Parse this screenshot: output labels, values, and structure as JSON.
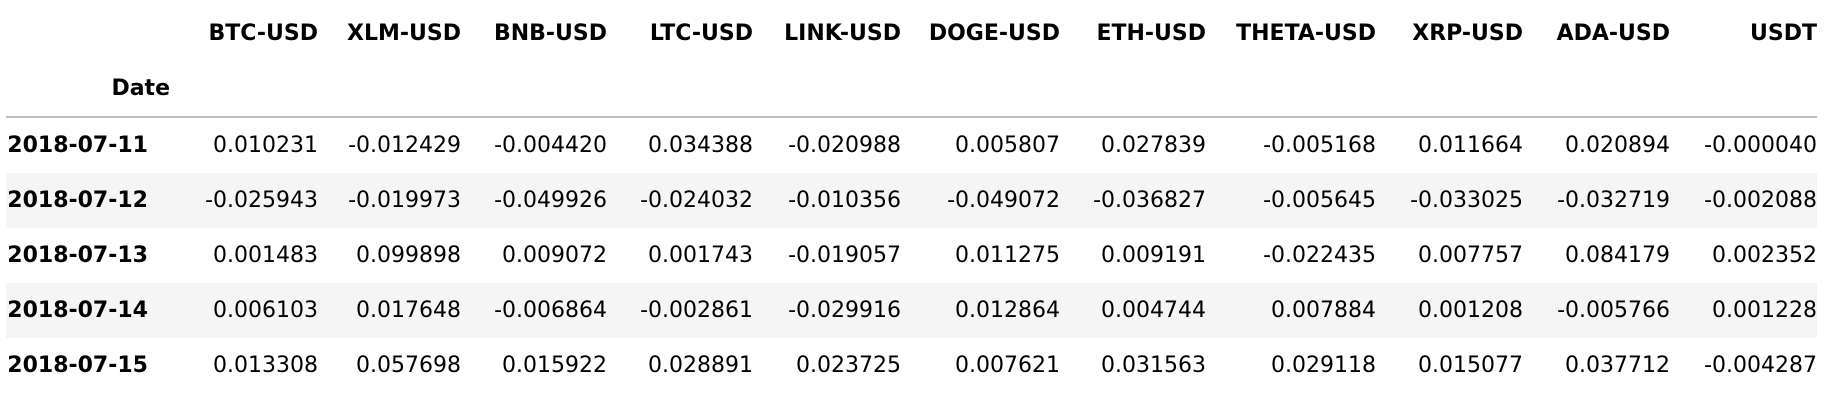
{
  "table": {
    "index_name": "Date",
    "columns": [
      "BTC-USD",
      "XLM-USD",
      "BNB-USD",
      "LTC-USD",
      "LINK-USD",
      "DOGE-USD",
      "ETH-USD",
      "THETA-USD",
      "XRP-USD",
      "ADA-USD",
      "USDT"
    ],
    "rows": [
      {
        "date": "2018-07-11",
        "values": [
          "0.010231",
          "-0.012429",
          "-0.004420",
          "0.034388",
          "-0.020988",
          "0.005807",
          "0.027839",
          "-0.005168",
          "0.011664",
          "0.020894",
          "-0.000040"
        ]
      },
      {
        "date": "2018-07-12",
        "values": [
          "-0.025943",
          "-0.019973",
          "-0.049926",
          "-0.024032",
          "-0.010356",
          "-0.049072",
          "-0.036827",
          "-0.005645",
          "-0.033025",
          "-0.032719",
          "-0.002088"
        ]
      },
      {
        "date": "2018-07-13",
        "values": [
          "0.001483",
          "0.099898",
          "0.009072",
          "0.001743",
          "-0.019057",
          "0.011275",
          "0.009191",
          "-0.022435",
          "0.007757",
          "0.084179",
          "0.002352"
        ]
      },
      {
        "date": "2018-07-14",
        "values": [
          "0.006103",
          "0.017648",
          "-0.006864",
          "-0.002861",
          "-0.029916",
          "0.012864",
          "0.004744",
          "0.007884",
          "0.001208",
          "-0.005766",
          "0.001228"
        ]
      },
      {
        "date": "2018-07-15",
        "values": [
          "0.013308",
          "0.057698",
          "0.015922",
          "0.028891",
          "0.023725",
          "0.007621",
          "0.031563",
          "0.029118",
          "0.015077",
          "0.037712",
          "-0.004287"
        ]
      }
    ]
  }
}
